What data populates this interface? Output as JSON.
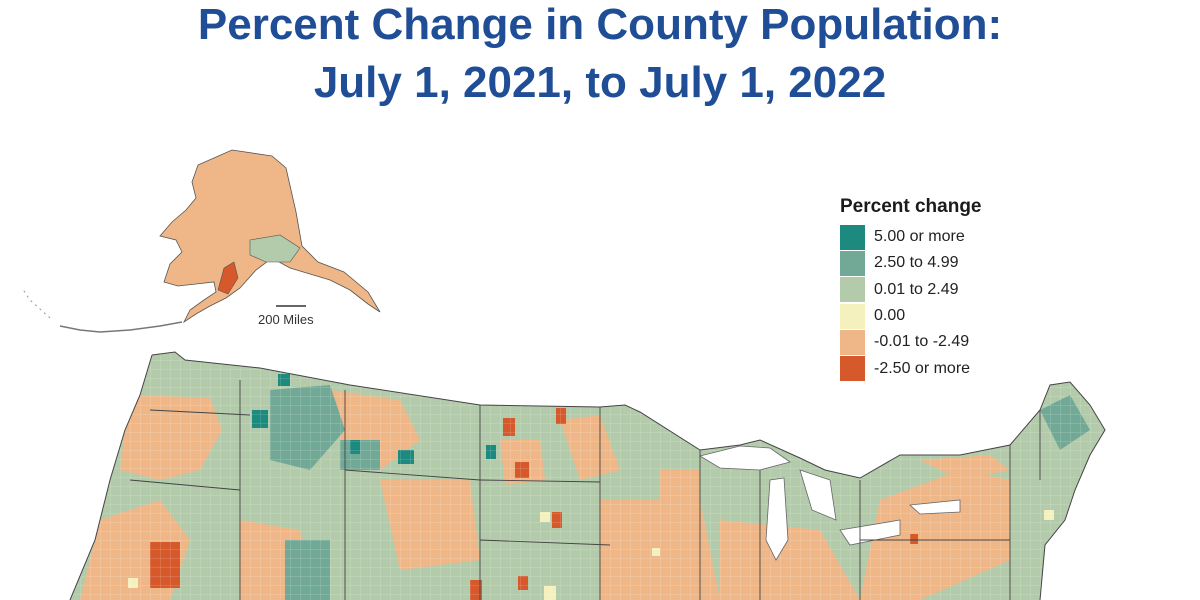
{
  "title": {
    "line1": "Percent Change in County Population:",
    "line2": "July 1, 2021, to July 1, 2022"
  },
  "legend": {
    "title": "Percent change",
    "items": [
      {
        "label": "5.00 or more",
        "color": "#1d8a7f"
      },
      {
        "label": "2.50 to 4.99",
        "color": "#72a996"
      },
      {
        "label": "0.01 to 2.49",
        "color": "#b3cbaa"
      },
      {
        "label": "0.00",
        "color": "#f5f1bf"
      },
      {
        "label": "-0.01 to -2.49",
        "color": "#efb787"
      },
      {
        "label": "-2.50 or more",
        "color": "#d6592b"
      }
    ]
  },
  "scale_bar": {
    "label": "200 Miles"
  }
}
